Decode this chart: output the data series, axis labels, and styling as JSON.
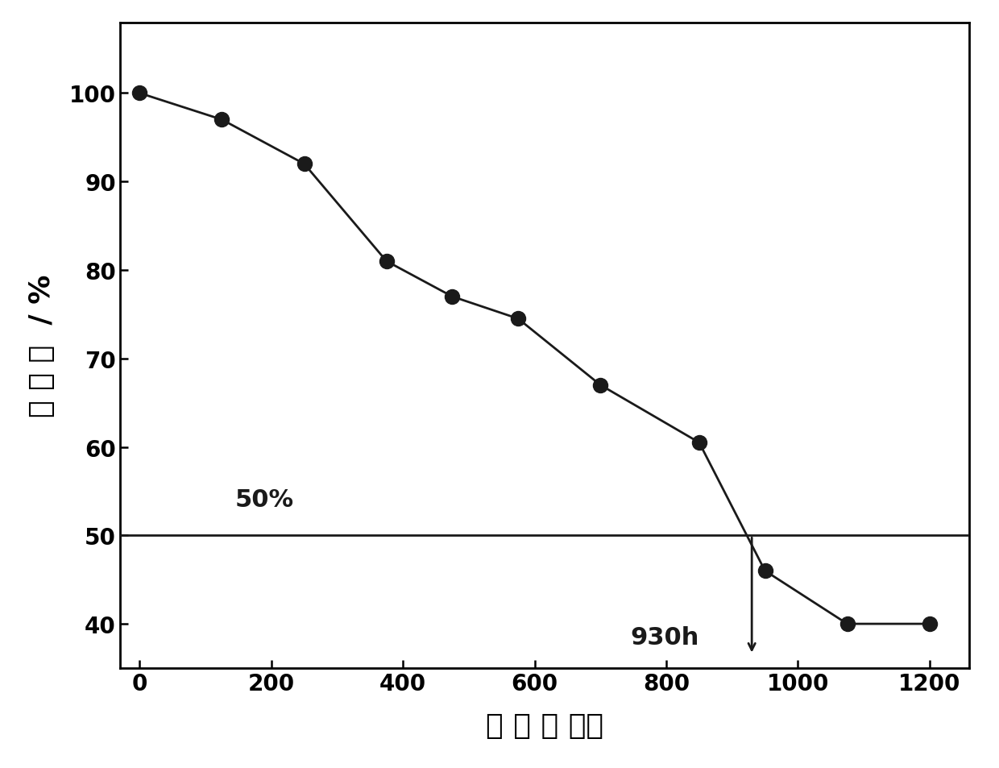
{
  "x": [
    0,
    125,
    250,
    375,
    475,
    575,
    700,
    850,
    950,
    1075,
    1200
  ],
  "y": [
    100,
    97,
    92,
    81,
    77,
    74.5,
    67,
    60.5,
    46,
    40,
    40
  ],
  "xlim": [
    -30,
    1260
  ],
  "ylim": [
    35,
    108
  ],
  "xticks": [
    0,
    200,
    400,
    600,
    800,
    1000,
    1200
  ],
  "yticks": [
    40,
    50,
    60,
    70,
    80,
    90,
    100
  ],
  "xlabel": "时 间 ／ 小时",
  "ylabel": "保 光 率  / %",
  "hline_y": 50,
  "vline_x": 930,
  "annotation_930h": "930h",
  "annotation_50pct": "50%",
  "line_color": "#1a1a1a",
  "marker_color": "#1a1a1a",
  "marker_size": 13,
  "line_width": 2.0,
  "font_size_labels": 26,
  "font_size_ticks": 20,
  "font_size_annotation": 22,
  "background_color": "#ffffff"
}
